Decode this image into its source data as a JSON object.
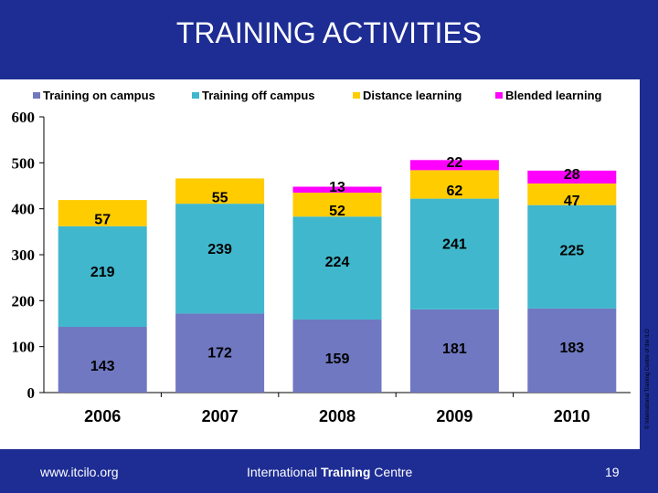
{
  "slide": {
    "title": "TRAINING ACTIVITIES",
    "footer_url": "www.itcilo.org",
    "footer_center_prefix": "International ",
    "footer_center_bold": "Training",
    "footer_center_suffix": " Centre",
    "page_number": "19",
    "side_note": "© International Training Centre of the ILO"
  },
  "colors": {
    "background": "#1e2d94",
    "panel": "#ffffff"
  },
  "chart_data": {
    "type": "bar",
    "stacked": true,
    "title": "",
    "xlabel": "",
    "ylabel": "",
    "categories": [
      "2006",
      "2007",
      "2008",
      "2009",
      "2010"
    ],
    "ylim": [
      0,
      600
    ],
    "yticks": [
      0,
      100,
      200,
      300,
      400,
      500,
      600
    ],
    "grid": false,
    "legend_position": "top",
    "series": [
      {
        "name": "Training on campus",
        "color": "#6f78c0",
        "values": [
          143,
          172,
          159,
          181,
          183
        ]
      },
      {
        "name": "Training off campus",
        "color": "#40b7cd",
        "values": [
          219,
          239,
          224,
          241,
          225
        ]
      },
      {
        "name": "Distance learning",
        "color": "#ffcc00",
        "values": [
          57,
          55,
          52,
          62,
          47
        ]
      },
      {
        "name": "Blended learning",
        "color": "#ff00ff",
        "values": [
          0,
          0,
          13,
          22,
          28
        ]
      }
    ]
  }
}
